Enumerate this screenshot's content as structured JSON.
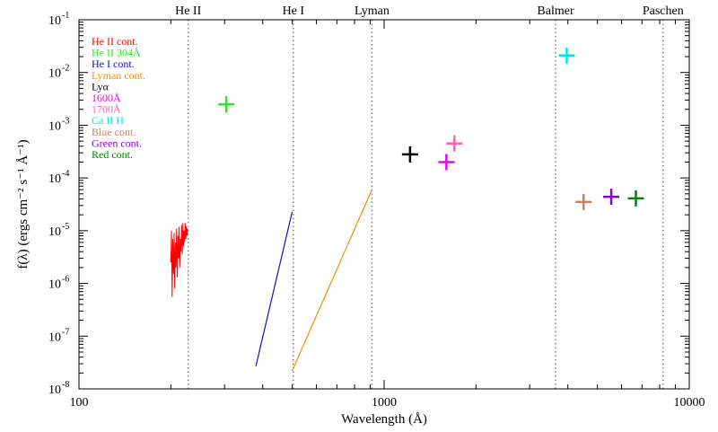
{
  "chart_data": {
    "type": "scatter",
    "title": "",
    "xlabel": "Wavelength (Å)",
    "ylabel": "f(λ) (ergs cm⁻² s⁻¹ Å⁻¹)",
    "xscale": "log",
    "yscale": "log",
    "xlim": [
      100,
      10000
    ],
    "ylim": [
      1e-08,
      0.1
    ],
    "x_ticks": [
      {
        "value": 100,
        "label": "100"
      },
      {
        "value": 1000,
        "label": "1000"
      },
      {
        "value": 10000,
        "label": "10000"
      }
    ],
    "y_ticks": [
      {
        "exp": -8,
        "label": "-8"
      },
      {
        "exp": -7,
        "label": "-7"
      },
      {
        "exp": -6,
        "label": "-6"
      },
      {
        "exp": -5,
        "label": "-5"
      },
      {
        "exp": -4,
        "label": "-4"
      },
      {
        "exp": -3,
        "label": "-3"
      },
      {
        "exp": -2,
        "label": "-2"
      },
      {
        "exp": -1,
        "label": "-1"
      }
    ],
    "y_tick_base": "10",
    "edges": [
      {
        "label": "He II",
        "x": 228
      },
      {
        "label": "He I",
        "x": 504
      },
      {
        "label": "Lyman",
        "x": 912
      },
      {
        "label": "Balmer",
        "x": 3646
      },
      {
        "label": "Paschen",
        "x": 8204
      }
    ],
    "legend": [
      {
        "label": "He II cont.",
        "color": "#ff0000"
      },
      {
        "label": "He II 304Å",
        "color": "#22ee22"
      },
      {
        "label": "He I cont.",
        "color": "#1010cc"
      },
      {
        "label": "Lyman cont.",
        "color": "#ff8c00"
      },
      {
        "label": "Lyα",
        "color": "#000000"
      },
      {
        "label": "1600Å",
        "color": "#ee00ee"
      },
      {
        "label": "1700Å",
        "color": "#ff60b0"
      },
      {
        "label": "Ca II H",
        "color": "#00e5e5"
      },
      {
        "label": "Blue cont.",
        "color": "#cd7f5f"
      },
      {
        "label": "Green cont.",
        "color": "#8800cc"
      },
      {
        "label": "Red cont.",
        "color": "#008800"
      }
    ],
    "points": [
      {
        "name": "He II 304Å",
        "x": 304,
        "y": 0.0025,
        "color": "#22ee22"
      },
      {
        "name": "Lyα",
        "x": 1216,
        "y": 0.00028,
        "color": "#000000"
      },
      {
        "name": "1600Å",
        "x": 1600,
        "y": 0.0002,
        "color": "#ee00ee"
      },
      {
        "name": "1700Å",
        "x": 1700,
        "y": 0.00045,
        "color": "#ff60b0"
      },
      {
        "name": "Ca II H",
        "x": 3968,
        "y": 0.021,
        "color": "#00e5e5"
      },
      {
        "name": "Blue cont.",
        "x": 4505,
        "y": 3.5e-05,
        "color": "#cd7f5f"
      },
      {
        "name": "Green cont.",
        "x": 5550,
        "y": 4.4e-05,
        "color": "#8800cc"
      },
      {
        "name": "Red cont.",
        "x": 6684,
        "y": 4.1e-05,
        "color": "#008800"
      }
    ],
    "lines": [
      {
        "name": "He I cont.",
        "color": "#1010cc",
        "x": [
          380,
          500
        ],
        "y": [
          2.7e-08,
          2.3e-05
        ]
      },
      {
        "name": "Lyman cont.",
        "color": "#ff8c00",
        "x": [
          500,
          912
        ],
        "y": [
          2.2e-08,
          6e-05
        ]
      }
    ],
    "spectrum": {
      "name": "He II cont.",
      "color": "#ff0000",
      "x": [
        200,
        201,
        202,
        203,
        204,
        205,
        206,
        207,
        208,
        209,
        210,
        211,
        212,
        213,
        214,
        215,
        216,
        217,
        218,
        219,
        220,
        221,
        222,
        223,
        224,
        225,
        226,
        227
      ],
      "y": [
        2.5e-06,
        1e-05,
        5.5e-07,
        7e-06,
        1.5e-06,
        9e-06,
        8e-07,
        6e-06,
        2e-06,
        1.1e-05,
        1.3e-06,
        8e-06,
        3e-06,
        1.2e-05,
        2e-06,
        7e-06,
        4e-06,
        1.3e-05,
        3.5e-06,
        1.4e-05,
        5e-06,
        1e-05,
        6e-06,
        1.4e-05,
        7e-06,
        1.2e-05,
        8e-06,
        1.1e-05
      ]
    }
  }
}
